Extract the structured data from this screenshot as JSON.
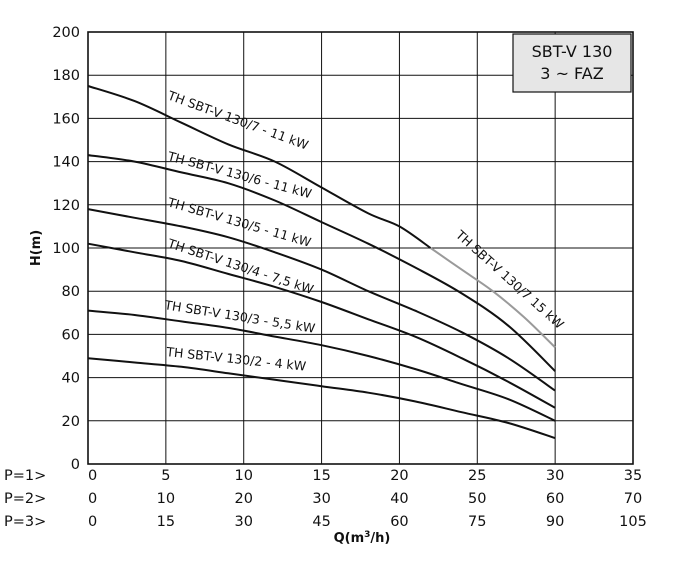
{
  "chart_data": {
    "type": "line",
    "title_box": [
      "SBT-V 130",
      "3 ~ FAZ"
    ],
    "xlabel": "Q(m³/h)",
    "ylabel": "H(m)",
    "xlim": [
      0,
      35
    ],
    "ylim": [
      0,
      200
    ],
    "grid": true,
    "y_ticks": [
      "0",
      "20",
      "40",
      "60",
      "80",
      "100",
      "120",
      "140",
      "160",
      "180",
      "200"
    ],
    "x_axis_rows": [
      {
        "label": "P=1>",
        "ticks": [
          "0",
          "5",
          "10",
          "15",
          "20",
          "25",
          "30",
          "35"
        ]
      },
      {
        "label": "P=2>",
        "ticks": [
          "0",
          "10",
          "20",
          "30",
          "40",
          "50",
          "60",
          "70"
        ]
      },
      {
        "label": "P=3>",
        "ticks": [
          "0",
          "15",
          "30",
          "45",
          "60",
          "75",
          "90",
          "105"
        ]
      }
    ],
    "series": [
      {
        "name": "TH SBT-V 130/7 - 11 kW",
        "color": "#111111",
        "x": [
          0,
          3,
          6,
          9,
          12,
          15,
          18,
          20,
          22
        ],
        "y": [
          175,
          168,
          158,
          148,
          140,
          128,
          116,
          110,
          100
        ]
      },
      {
        "name": "TH SBT-V 130/7 15 kW",
        "color": "#9a9a9a",
        "x": [
          22,
          24,
          26,
          28,
          30
        ],
        "y": [
          100,
          90,
          80,
          68,
          54
        ]
      },
      {
        "name": "TH SBT-V 130/6 - 11 kW",
        "color": "#111111",
        "x": [
          0,
          3,
          6,
          9,
          12,
          15,
          18,
          21,
          24,
          27,
          30
        ],
        "y": [
          143,
          140,
          135,
          130,
          122,
          112,
          102,
          91,
          79,
          64,
          43
        ]
      },
      {
        "name": "TH SBT-V 130/5 - 11 kW",
        "color": "#111111",
        "x": [
          0,
          3,
          6,
          9,
          12,
          15,
          18,
          21,
          24,
          27,
          30
        ],
        "y": [
          118,
          114,
          110,
          105,
          98,
          90,
          80,
          71,
          61,
          49,
          34
        ]
      },
      {
        "name": "TH SBT-V 130/4 - 7,5 kW",
        "color": "#111111",
        "x": [
          0,
          3,
          6,
          9,
          12,
          15,
          18,
          21,
          24,
          27,
          30
        ],
        "y": [
          102,
          98,
          94,
          88,
          82,
          75,
          67,
          59,
          49,
          38,
          26
        ]
      },
      {
        "name": "TH SBT-V 130/3 - 5,5 kW",
        "color": "#111111",
        "x": [
          0,
          3,
          6,
          9,
          12,
          15,
          18,
          21,
          24,
          27,
          30
        ],
        "y": [
          71,
          69,
          66,
          63,
          59,
          55,
          50,
          44,
          37,
          30,
          20
        ]
      },
      {
        "name": "TH SBT-V 130/2 - 4 kW",
        "color": "#111111",
        "x": [
          0,
          3,
          6,
          9,
          12,
          15,
          18,
          21,
          24,
          27,
          30
        ],
        "y": [
          49,
          47,
          45,
          42,
          39,
          36,
          33,
          29,
          24,
          19,
          12
        ]
      }
    ]
  }
}
